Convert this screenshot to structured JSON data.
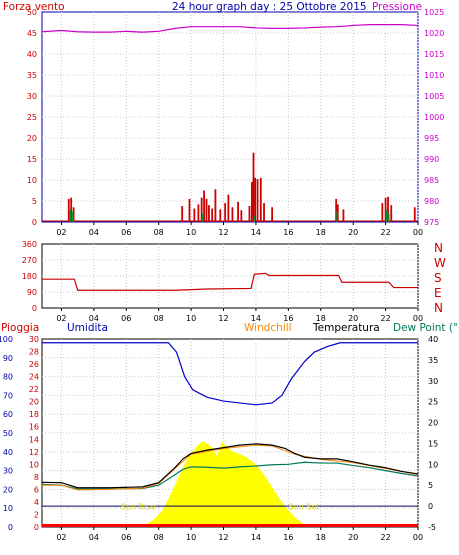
{
  "title": "24 hour graph day : 25 Ottobre 2015",
  "colors": {
    "wind": "#cc0000",
    "pressure": "#cc00cc",
    "direction": "#cc0000",
    "humidity": "#0000cc",
    "rain": "#ff0000",
    "windchill": "#ff8800",
    "temperature": "#000000",
    "dewpoint": "#007a5e",
    "sun": "#ffff00",
    "axis_blue": "#0000aa",
    "axis_red": "#cc0000",
    "axis_magenta": "#cc00cc",
    "axis_black": "#000000",
    "grid": "#c8c8c8"
  },
  "x_ticks": [
    "02",
    "04",
    "06",
    "08",
    "10",
    "12",
    "14",
    "16",
    "18",
    "20",
    "22",
    "00"
  ],
  "chart_data": [
    {
      "type": "bar",
      "name": "wind-pressure",
      "left_label": "Forza vento",
      "right_label": "Pressione",
      "ylim_left": [
        0,
        50
      ],
      "yticks_left": [
        "0",
        "5",
        "10",
        "15",
        "20",
        "25",
        "30",
        "35",
        "40",
        "45",
        "50"
      ],
      "ylim_right": [
        975,
        1025
      ],
      "yticks_right": [
        "975",
        "980",
        "985",
        "990",
        "995",
        "1000",
        "1005",
        "1010",
        "1015",
        "1020",
        "1025"
      ],
      "x_range": [
        0.8,
        24
      ],
      "wind_bars": [
        {
          "x": 2.45,
          "v": 5.5
        },
        {
          "x": 2.6,
          "v": 5.8
        },
        {
          "x": 2.75,
          "v": 3.5
        },
        {
          "x": 9.45,
          "v": 3.8
        },
        {
          "x": 9.9,
          "v": 5.5
        },
        {
          "x": 10.2,
          "v": 3.2
        },
        {
          "x": 10.45,
          "v": 4.2
        },
        {
          "x": 10.65,
          "v": 5.8
        },
        {
          "x": 10.8,
          "v": 7.5
        },
        {
          "x": 10.95,
          "v": 5.5
        },
        {
          "x": 11.1,
          "v": 4.0
        },
        {
          "x": 11.3,
          "v": 3.2
        },
        {
          "x": 11.5,
          "v": 7.8
        },
        {
          "x": 11.8,
          "v": 3.0
        },
        {
          "x": 12.1,
          "v": 4.5
        },
        {
          "x": 12.3,
          "v": 6.5
        },
        {
          "x": 12.55,
          "v": 3.5
        },
        {
          "x": 12.9,
          "v": 4.8
        },
        {
          "x": 13.1,
          "v": 2.8
        },
        {
          "x": 13.6,
          "v": 3.8
        },
        {
          "x": 13.75,
          "v": 9.5
        },
        {
          "x": 13.85,
          "v": 16.5
        },
        {
          "x": 13.95,
          "v": 10.5
        },
        {
          "x": 14.1,
          "v": 10.2
        },
        {
          "x": 14.3,
          "v": 10.5
        },
        {
          "x": 14.5,
          "v": 4.5
        },
        {
          "x": 15.0,
          "v": 3.5
        },
        {
          "x": 18.95,
          "v": 5.5
        },
        {
          "x": 19.05,
          "v": 4.2
        },
        {
          "x": 19.4,
          "v": 3.0
        },
        {
          "x": 21.8,
          "v": 4.5
        },
        {
          "x": 22.0,
          "v": 5.8
        },
        {
          "x": 22.15,
          "v": 6.0
        },
        {
          "x": 22.35,
          "v": 4.0
        },
        {
          "x": 23.8,
          "v": 3.5
        }
      ],
      "gust_bars": [
        {
          "x": 2.55,
          "v": 3.0
        },
        {
          "x": 2.7,
          "v": 2.5
        },
        {
          "x": 10.7,
          "v": 2.0
        },
        {
          "x": 13.9,
          "v": 1.5
        },
        {
          "x": 19.0,
          "v": 2.5
        },
        {
          "x": 22.05,
          "v": 3.0
        },
        {
          "x": 22.2,
          "v": 2.0
        }
      ],
      "pressure": [
        {
          "x": 0.8,
          "v": 1020.3
        },
        {
          "x": 2.0,
          "v": 1020.6
        },
        {
          "x": 3.0,
          "v": 1020.3
        },
        {
          "x": 4.0,
          "v": 1020.2
        },
        {
          "x": 5.0,
          "v": 1020.2
        },
        {
          "x": 6.0,
          "v": 1020.4
        },
        {
          "x": 7.0,
          "v": 1020.2
        },
        {
          "x": 8.0,
          "v": 1020.4
        },
        {
          "x": 9.0,
          "v": 1021.1
        },
        {
          "x": 10.0,
          "v": 1021.5
        },
        {
          "x": 11.0,
          "v": 1021.5
        },
        {
          "x": 12.0,
          "v": 1021.5
        },
        {
          "x": 13.0,
          "v": 1021.5
        },
        {
          "x": 14.0,
          "v": 1021.2
        },
        {
          "x": 15.0,
          "v": 1021.1
        },
        {
          "x": 16.0,
          "v": 1021.1
        },
        {
          "x": 17.0,
          "v": 1021.2
        },
        {
          "x": 18.0,
          "v": 1021.4
        },
        {
          "x": 19.0,
          "v": 1021.5
        },
        {
          "x": 20.0,
          "v": 1021.8
        },
        {
          "x": 21.0,
          "v": 1022.0
        },
        {
          "x": 22.0,
          "v": 1022.0
        },
        {
          "x": 23.0,
          "v": 1022.0
        },
        {
          "x": 24.0,
          "v": 1021.8
        }
      ]
    },
    {
      "type": "line",
      "name": "wind-direction",
      "ylim": [
        0,
        360
      ],
      "yticks": [
        "0",
        "90",
        "180",
        "270",
        "360"
      ],
      "right_labels": [
        "N",
        "W",
        "S",
        "E",
        "N"
      ],
      "x_range": [
        0.8,
        24
      ],
      "values": [
        {
          "x": 0.8,
          "v": 162
        },
        {
          "x": 2.8,
          "v": 162
        },
        {
          "x": 3.0,
          "v": 100
        },
        {
          "x": 9.0,
          "v": 100
        },
        {
          "x": 11.0,
          "v": 107
        },
        {
          "x": 13.7,
          "v": 110
        },
        {
          "x": 13.9,
          "v": 190
        },
        {
          "x": 14.6,
          "v": 195
        },
        {
          "x": 14.8,
          "v": 183
        },
        {
          "x": 19.1,
          "v": 183
        },
        {
          "x": 19.3,
          "v": 145
        },
        {
          "x": 22.2,
          "v": 145
        },
        {
          "x": 22.5,
          "v": 115
        },
        {
          "x": 24.0,
          "v": 115
        }
      ]
    },
    {
      "type": "line",
      "name": "humidity-temperature",
      "labels": [
        "Pioggia",
        "Umidita",
        "Windchill",
        "Temperatura",
        "Dew Point (°C"
      ],
      "ylim_left": [
        0,
        100
      ],
      "yticks_left": [
        "0",
        "10",
        "20",
        "30",
        "40",
        "50",
        "60",
        "70",
        "80",
        "90",
        "100"
      ],
      "ylim_rain": [
        0,
        30
      ],
      "yticks_rain": [
        "0",
        "2",
        "4",
        "6",
        "8",
        "10",
        "12",
        "14",
        "16",
        "18",
        "20",
        "22",
        "24",
        "26",
        "28",
        "30"
      ],
      "ylim_right": [
        -5,
        40
      ],
      "yticks_right": [
        "-5",
        "0",
        "5",
        "10",
        "15",
        "20",
        "25",
        "30",
        "35",
        "40"
      ],
      "x_range": [
        0.8,
        24
      ],
      "sun_labels": [
        "Sun Rise",
        "Sun Set"
      ],
      "sun_rise_x": 6.9,
      "sun_set_x": 17.0,
      "humidity": [
        {
          "x": 0.8,
          "v": 98
        },
        {
          "x": 8.6,
          "v": 98
        },
        {
          "x": 9.1,
          "v": 93
        },
        {
          "x": 9.6,
          "v": 80
        },
        {
          "x": 10.1,
          "v": 73
        },
        {
          "x": 11.0,
          "v": 69
        },
        {
          "x": 12.0,
          "v": 67
        },
        {
          "x": 13.0,
          "v": 66
        },
        {
          "x": 14.0,
          "v": 65
        },
        {
          "x": 15.0,
          "v": 66
        },
        {
          "x": 15.6,
          "v": 70
        },
        {
          "x": 16.2,
          "v": 79
        },
        {
          "x": 17.0,
          "v": 88
        },
        {
          "x": 17.6,
          "v": 93
        },
        {
          "x": 18.4,
          "v": 96
        },
        {
          "x": 19.2,
          "v": 98
        },
        {
          "x": 24.0,
          "v": 98
        }
      ],
      "temperature": [
        {
          "x": 0.8,
          "v": 5.7
        },
        {
          "x": 2.0,
          "v": 5.6
        },
        {
          "x": 3.0,
          "v": 4.4
        },
        {
          "x": 5.0,
          "v": 4.4
        },
        {
          "x": 7.0,
          "v": 4.6
        },
        {
          "x": 8.0,
          "v": 5.6
        },
        {
          "x": 9.0,
          "v": 9.2
        },
        {
          "x": 9.5,
          "v": 11.3
        },
        {
          "x": 10.0,
          "v": 12.6
        },
        {
          "x": 11.0,
          "v": 13.4
        },
        {
          "x": 12.0,
          "v": 14.0
        },
        {
          "x": 13.0,
          "v": 14.6
        },
        {
          "x": 14.0,
          "v": 14.9
        },
        {
          "x": 15.0,
          "v": 14.6
        },
        {
          "x": 15.8,
          "v": 13.8
        },
        {
          "x": 16.4,
          "v": 12.6
        },
        {
          "x": 17.0,
          "v": 11.7
        },
        {
          "x": 18.0,
          "v": 11.3
        },
        {
          "x": 19.0,
          "v": 11.3
        },
        {
          "x": 20.0,
          "v": 10.6
        },
        {
          "x": 21.0,
          "v": 9.8
        },
        {
          "x": 22.0,
          "v": 9.2
        },
        {
          "x": 23.0,
          "v": 8.3
        },
        {
          "x": 24.0,
          "v": 7.7
        }
      ],
      "dewpoint": [
        {
          "x": 0.8,
          "v": 5.2
        },
        {
          "x": 2.0,
          "v": 5.0
        },
        {
          "x": 3.0,
          "v": 4.1
        },
        {
          "x": 5.0,
          "v": 4.1
        },
        {
          "x": 7.0,
          "v": 4.2
        },
        {
          "x": 8.0,
          "v": 5.0
        },
        {
          "x": 9.0,
          "v": 7.5
        },
        {
          "x": 9.5,
          "v": 8.8
        },
        {
          "x": 10.0,
          "v": 9.4
        },
        {
          "x": 11.0,
          "v": 9.3
        },
        {
          "x": 12.0,
          "v": 9.1
        },
        {
          "x": 13.0,
          "v": 9.4
        },
        {
          "x": 14.0,
          "v": 9.6
        },
        {
          "x": 15.0,
          "v": 9.9
        },
        {
          "x": 16.0,
          "v": 10.0
        },
        {
          "x": 17.0,
          "v": 10.5
        },
        {
          "x": 18.0,
          "v": 10.3
        },
        {
          "x": 19.0,
          "v": 10.3
        },
        {
          "x": 20.0,
          "v": 9.7
        },
        {
          "x": 21.0,
          "v": 9.2
        },
        {
          "x": 22.0,
          "v": 8.5
        },
        {
          "x": 23.0,
          "v": 7.8
        },
        {
          "x": 24.0,
          "v": 7.2
        }
      ],
      "windchill": [
        {
          "x": 0.8,
          "v": 5.0
        },
        {
          "x": 2.0,
          "v": 5.0
        },
        {
          "x": 3.0,
          "v": 3.9
        },
        {
          "x": 5.0,
          "v": 4.0
        },
        {
          "x": 7.0,
          "v": 4.3
        },
        {
          "x": 8.0,
          "v": 5.4
        },
        {
          "x": 9.0,
          "v": 9.0
        },
        {
          "x": 10.0,
          "v": 12.4
        },
        {
          "x": 12.0,
          "v": 13.8
        },
        {
          "x": 14.0,
          "v": 14.6
        },
        {
          "x": 15.0,
          "v": 14.4
        },
        {
          "x": 16.4,
          "v": 12.4
        },
        {
          "x": 18.0,
          "v": 11.2
        },
        {
          "x": 20.0,
          "v": 10.4
        },
        {
          "x": 22.0,
          "v": 9.0
        },
        {
          "x": 24.0,
          "v": 7.5
        }
      ],
      "sun": [
        {
          "x": 6.9,
          "v": 0
        },
        {
          "x": 7.3,
          "v": 0.8
        },
        {
          "x": 7.7,
          "v": 1.8
        },
        {
          "x": 8.2,
          "v": 3.8
        },
        {
          "x": 8.6,
          "v": 6.8
        },
        {
          "x": 9.0,
          "v": 10.0
        },
        {
          "x": 9.4,
          "v": 13.5
        },
        {
          "x": 9.8,
          "v": 16.5
        },
        {
          "x": 10.1,
          "v": 18.0
        },
        {
          "x": 10.4,
          "v": 19.5
        },
        {
          "x": 10.7,
          "v": 20.5
        },
        {
          "x": 11.0,
          "v": 20.0
        },
        {
          "x": 11.3,
          "v": 19.0
        },
        {
          "x": 11.6,
          "v": 17.0
        },
        {
          "x": 11.9,
          "v": 20.5
        },
        {
          "x": 12.2,
          "v": 19.0
        },
        {
          "x": 12.6,
          "v": 18.0
        },
        {
          "x": 13.0,
          "v": 17.5
        },
        {
          "x": 13.5,
          "v": 16.5
        },
        {
          "x": 14.0,
          "v": 15.0
        },
        {
          "x": 14.5,
          "v": 12.5
        },
        {
          "x": 15.0,
          "v": 9.5
        },
        {
          "x": 15.5,
          "v": 6.5
        },
        {
          "x": 16.0,
          "v": 4.0
        },
        {
          "x": 16.5,
          "v": 2.0
        },
        {
          "x": 17.0,
          "v": 0.5
        },
        {
          "x": 17.3,
          "v": 0
        }
      ],
      "zero_line_c": 0
    }
  ]
}
